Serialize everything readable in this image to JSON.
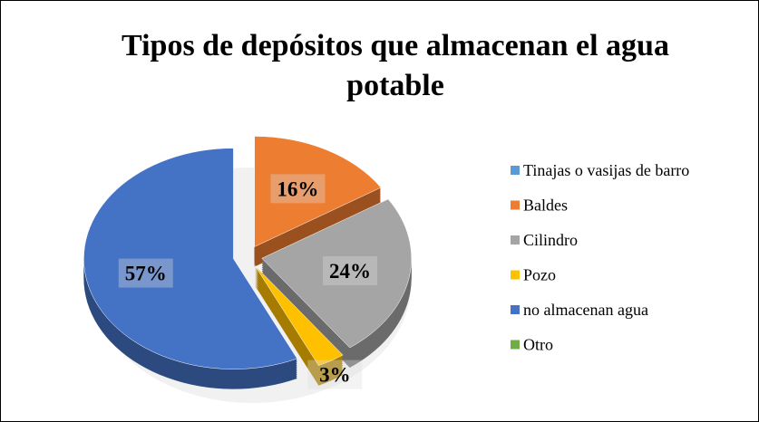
{
  "chart_data": {
    "type": "pie",
    "title": "Tipos de depósitos que almacenan el agua potable",
    "categories": [
      "Tinajas o vasijas de barro",
      "Baldes",
      "Cilindro",
      "Pozo",
      "no almacenan agua",
      "Otro"
    ],
    "values": [
      0,
      16,
      24,
      3,
      57,
      0
    ],
    "value_labels": [
      null,
      "16%",
      "24%",
      "3%",
      "57%",
      null
    ],
    "colors": [
      "#5b9bd5",
      "#ed7d31",
      "#a5a5a5",
      "#ffc000",
      "#4472c4",
      "#70ad47"
    ],
    "legend": "right"
  }
}
